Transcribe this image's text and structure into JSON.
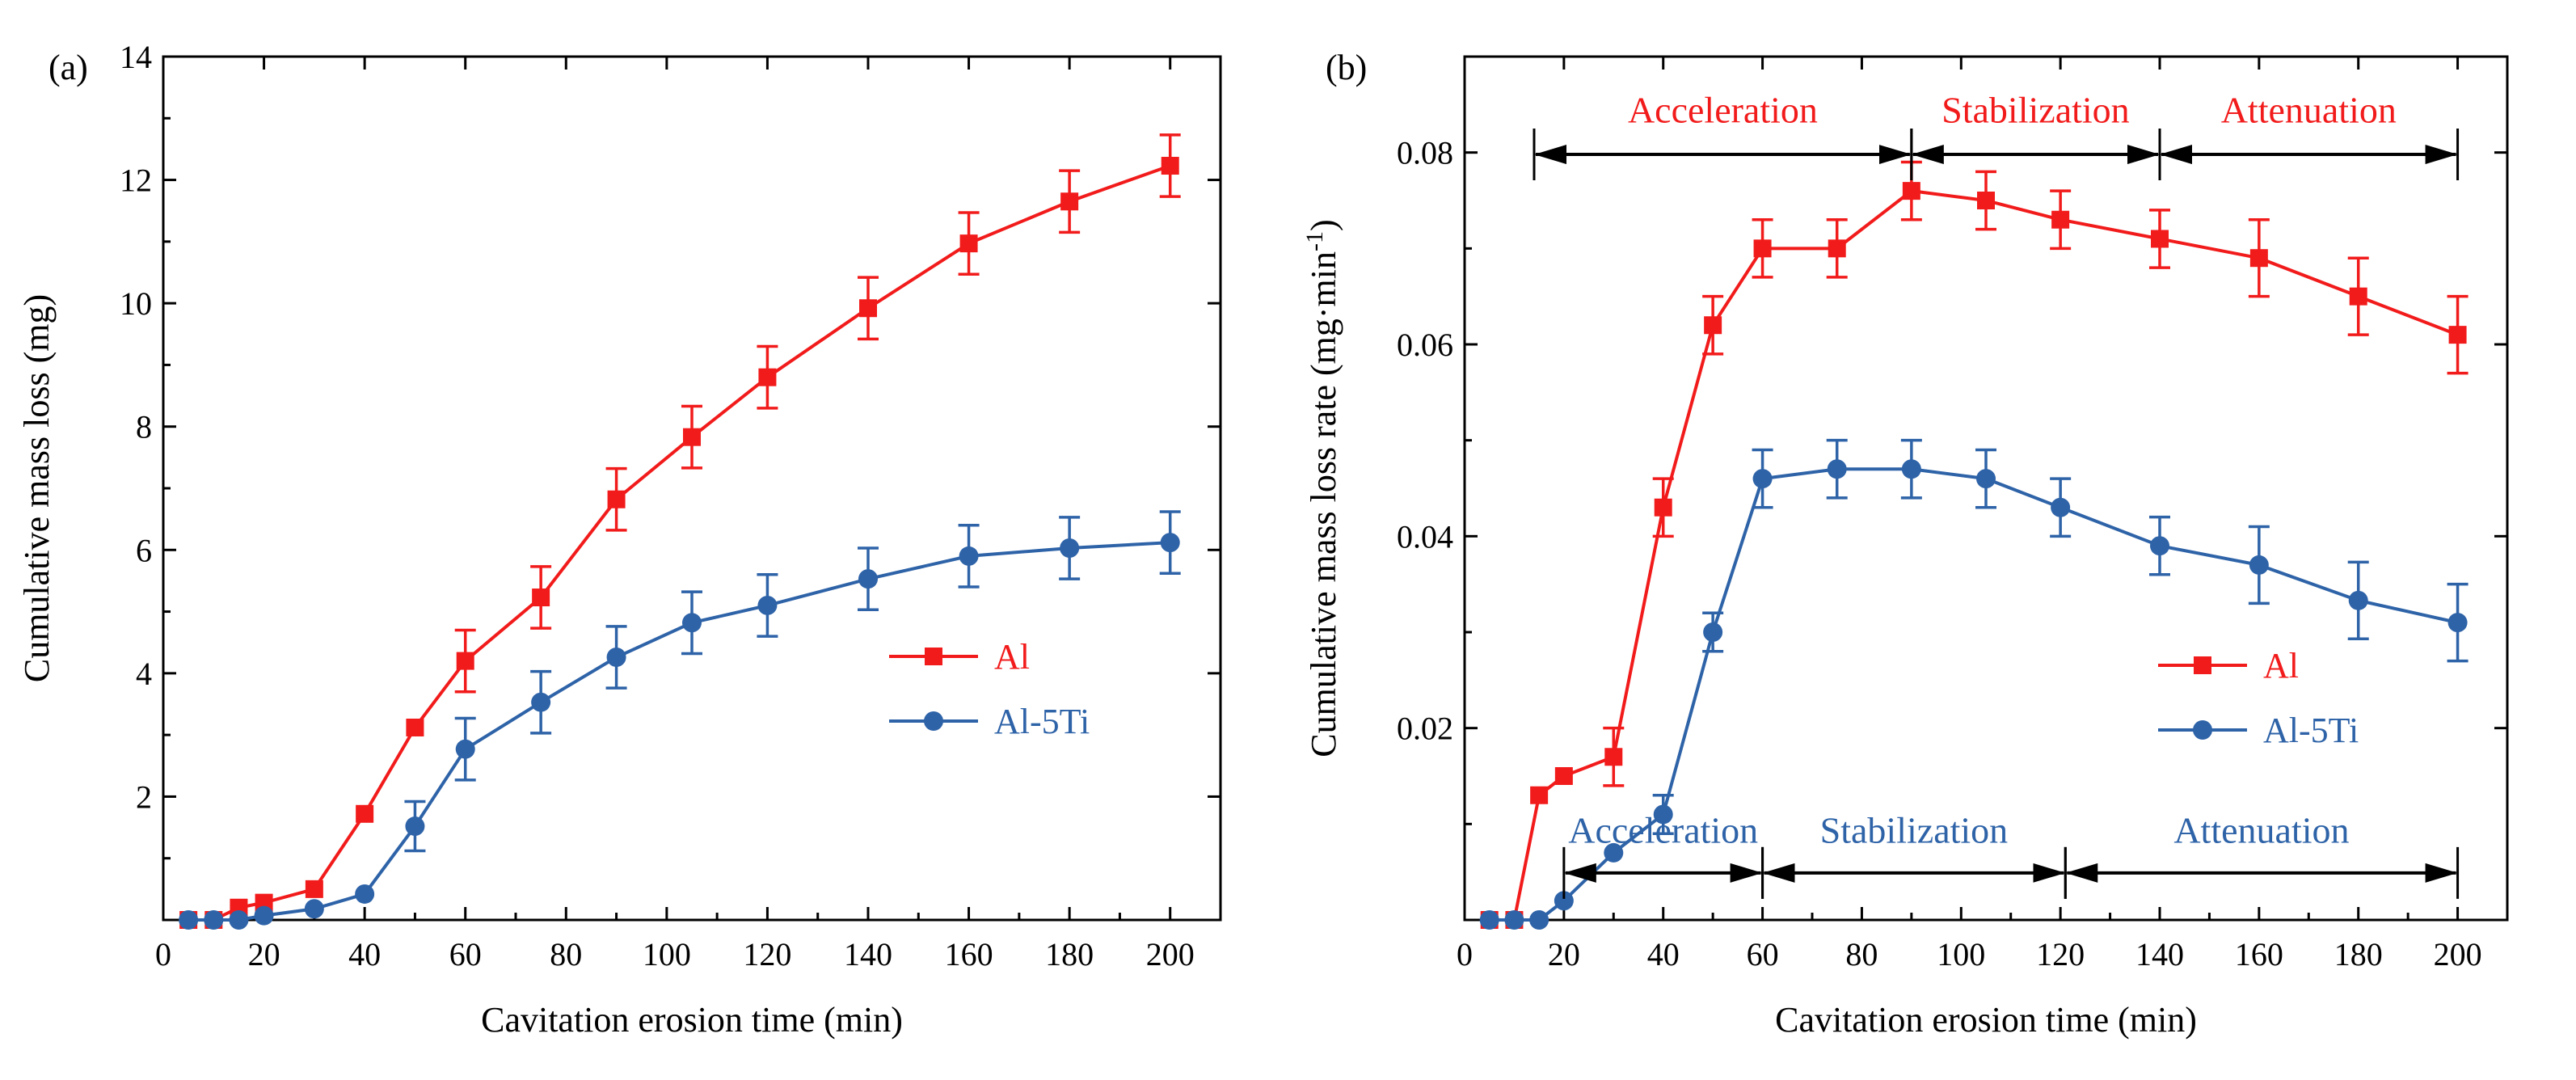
{
  "colors": {
    "al": "#f21b1b",
    "al5ti": "#2e63a8",
    "axis": "#000000",
    "phase_arrow": "#000000"
  },
  "panels": [
    {
      "id": "a",
      "label": "(a)",
      "xlabel": "Cavitation erosion time (min)",
      "ylabel": "Cumulative mass loss (mg)",
      "xlim": [
        0,
        210
      ],
      "ylim": [
        0,
        14
      ],
      "xticks": [
        0,
        20,
        40,
        60,
        80,
        100,
        120,
        140,
        160,
        180,
        200
      ],
      "yticks": [
        2,
        4,
        6,
        8,
        10,
        12,
        14
      ],
      "ytick_labels": [
        "2",
        "4",
        "6",
        "8",
        "10",
        "12",
        "14"
      ],
      "legend": {
        "position": "lower-right"
      },
      "phases": []
    },
    {
      "id": "b",
      "label": "(b)",
      "xlabel": "Cavitation erosion time (min)",
      "ylabel_main": "Cumulative mass loss rate (mg·min",
      "ylabel_sup": "-1",
      "ylabel_close": ")",
      "xlim": [
        0,
        210
      ],
      "ylim": [
        0,
        0.09
      ],
      "xticks": [
        0,
        20,
        40,
        60,
        80,
        100,
        120,
        140,
        160,
        180,
        200
      ],
      "yticks": [
        0.02,
        0.04,
        0.06,
        0.08
      ],
      "ytick_labels": [
        "0.02",
        "0.04",
        "0.06",
        "0.08"
      ],
      "legend": {
        "position": "lower-right"
      },
      "phases": [
        {
          "series": "al",
          "label": "Acceleration",
          "x0": 14,
          "x1": 90,
          "y": 0.0798,
          "label_y": 0.0845
        },
        {
          "series": "al",
          "label": "Stabilization",
          "x0": 90,
          "x1": 140,
          "y": 0.0798,
          "label_y": 0.0845
        },
        {
          "series": "al",
          "label": "Attenuation",
          "x0": 140,
          "x1": 200,
          "y": 0.0798,
          "label_y": 0.0845
        },
        {
          "series": "al5ti",
          "label": "Acceleration",
          "x0": 20,
          "x1": 60,
          "y": 0.0049,
          "label_y": 0.0094
        },
        {
          "series": "al5ti",
          "label": "Stabilization",
          "x0": 60,
          "x1": 121,
          "y": 0.0049,
          "label_y": 0.0094
        },
        {
          "series": "al5ti",
          "label": "Attenuation",
          "x0": 121,
          "x1": 200,
          "y": 0.0049,
          "label_y": 0.0094
        }
      ]
    }
  ],
  "chart_data": [
    {
      "type": "line",
      "title": "(a)",
      "xlabel": "Cavitation erosion time (min)",
      "ylabel": "Cumulative mass loss (mg)",
      "xlim": [
        0,
        210
      ],
      "ylim": [
        0,
        14
      ],
      "series": [
        {
          "name": "Al",
          "color_key": "al",
          "marker": "square",
          "x": [
            5,
            10,
            15,
            20,
            30,
            40,
            50,
            60,
            75,
            90,
            105,
            120,
            140,
            160,
            180,
            200
          ],
          "y": [
            0,
            0,
            0.2,
            0.28,
            0.5,
            1.72,
            3.12,
            4.2,
            5.23,
            6.82,
            7.83,
            8.8,
            9.92,
            10.97,
            11.65,
            12.23
          ],
          "err": [
            0,
            0,
            0,
            0,
            0,
            0,
            0,
            0.5,
            0.5,
            0.5,
            0.5,
            0.5,
            0.5,
            0.5,
            0.5,
            0.5
          ]
        },
        {
          "name": "Al-5Ti",
          "color_key": "al5ti",
          "marker": "circle",
          "x": [
            5,
            10,
            15,
            20,
            30,
            40,
            50,
            60,
            75,
            90,
            105,
            120,
            140,
            160,
            180,
            200
          ],
          "y": [
            0,
            0,
            0,
            0.07,
            0.18,
            0.42,
            1.52,
            2.77,
            3.53,
            4.26,
            4.82,
            5.1,
            5.53,
            5.9,
            6.03,
            6.12
          ],
          "err": [
            0,
            0,
            0,
            0,
            0,
            0,
            0.4,
            0.5,
            0.5,
            0.5,
            0.5,
            0.5,
            0.5,
            0.5,
            0.5,
            0.5
          ]
        }
      ]
    },
    {
      "type": "line",
      "title": "(b)",
      "xlabel": "Cavitation erosion time (min)",
      "ylabel": "Cumulative mass loss rate (mg·min-1)",
      "xlim": [
        0,
        210
      ],
      "ylim": [
        0,
        0.09
      ],
      "series": [
        {
          "name": "Al",
          "color_key": "al",
          "marker": "square",
          "x": [
            5,
            10,
            15,
            20,
            30,
            40,
            50,
            60,
            75,
            90,
            105,
            120,
            140,
            160,
            180,
            200
          ],
          "y": [
            0,
            0,
            0.013,
            0.015,
            0.017,
            0.043,
            0.062,
            0.07,
            0.07,
            0.076,
            0.075,
            0.073,
            0.071,
            0.069,
            0.065,
            0.061
          ],
          "err": [
            0,
            0,
            0,
            0,
            0.003,
            0.003,
            0.003,
            0.003,
            0.003,
            0.003,
            0.003,
            0.003,
            0.003,
            0.004,
            0.004,
            0.004
          ]
        },
        {
          "name": "Al-5Ti",
          "color_key": "al5ti",
          "marker": "circle",
          "x": [
            5,
            10,
            15,
            20,
            30,
            40,
            50,
            60,
            75,
            90,
            105,
            120,
            140,
            160,
            180,
            200
          ],
          "y": [
            0,
            0,
            0,
            0.002,
            0.007,
            0.011,
            0.03,
            0.046,
            0.047,
            0.047,
            0.046,
            0.043,
            0.039,
            0.037,
            0.0333,
            0.031
          ],
          "err": [
            0,
            0,
            0,
            0,
            0,
            0.002,
            0.002,
            0.003,
            0.003,
            0.003,
            0.003,
            0.003,
            0.003,
            0.004,
            0.004,
            0.004
          ]
        }
      ]
    }
  ]
}
